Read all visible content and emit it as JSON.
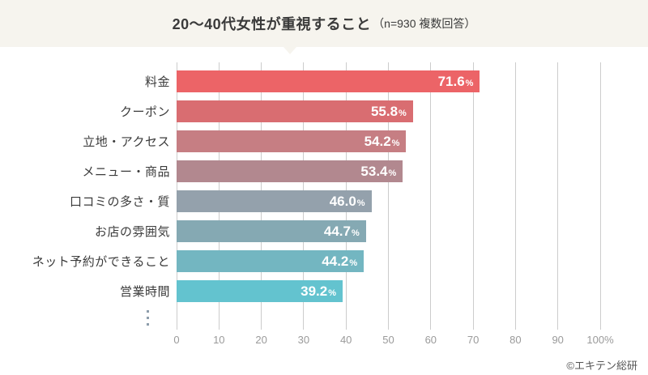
{
  "header": {
    "title": "20〜40代女性が重視すること",
    "subtitle": "（n=930 複数回答）"
  },
  "chart_data": {
    "type": "bar",
    "orientation": "horizontal",
    "title": "20〜40代女性が重視すること（n=930 複数回答）",
    "categories": [
      "料金",
      "クーポン",
      "立地・アクセス",
      "メニュー・商品",
      "口コミの多さ・質",
      "お店の雰囲気",
      "ネット予約ができること",
      "営業時間"
    ],
    "values": [
      71.6,
      55.8,
      54.2,
      53.4,
      46.0,
      44.7,
      44.2,
      39.2
    ],
    "unit": "%",
    "bar_colors": [
      "#ec6467",
      "#d96d71",
      "#c67e83",
      "#b2888f",
      "#94a1ac",
      "#85a9b3",
      "#73b6c1",
      "#63c3cf"
    ],
    "x_ticks": [
      "0",
      "10",
      "20",
      "30",
      "40",
      "50",
      "60",
      "70",
      "80",
      "90",
      "100%"
    ],
    "x_tick_values": [
      0,
      10,
      20,
      30,
      40,
      50,
      60,
      70,
      80,
      90,
      100
    ],
    "xlim": [
      0,
      100
    ],
    "grid": true,
    "legend": "none",
    "truncation_indicator": "⋮"
  },
  "footer": {
    "credit": "©エキテン総研"
  },
  "colors": {
    "header_bg": "#f6f4ee",
    "grid": "#cccccc",
    "category_label": "#3b3b3b",
    "tick_label": "#9a9a9a",
    "credit": "#555555",
    "value_label": "#ffffff"
  }
}
